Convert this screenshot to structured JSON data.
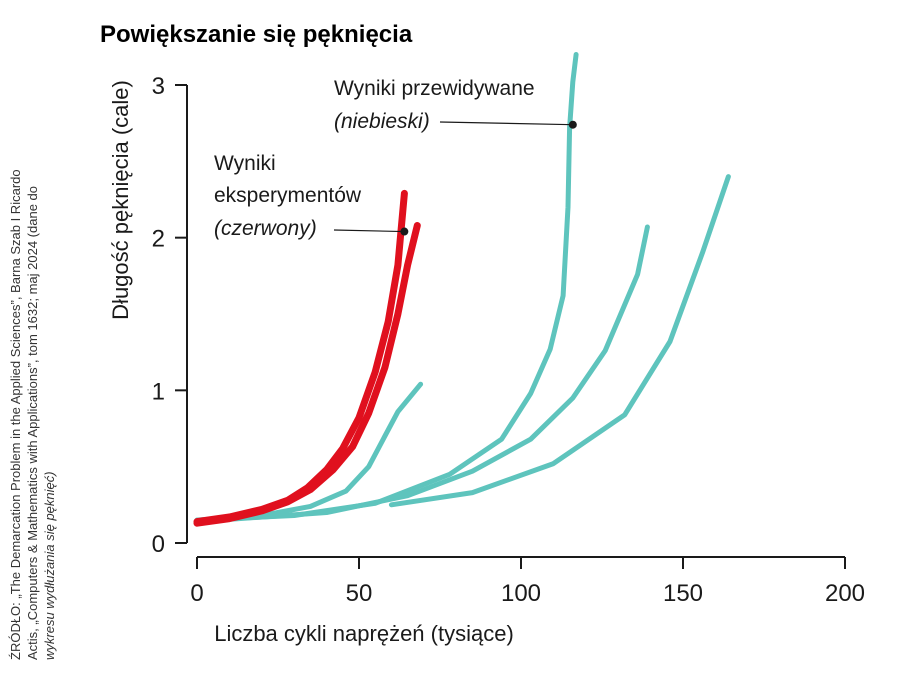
{
  "chart_data": {
    "type": "line",
    "title": "Powiększanie się pęknięcia",
    "xlabel": "Liczba cykli naprężeń (tysiące)",
    "ylabel": "Długość pęknięcia (cale)",
    "xlim": [
      0,
      200
    ],
    "ylim": [
      0,
      3
    ],
    "x_ticks": [
      "0",
      "50",
      "100",
      "150",
      "200"
    ],
    "y_ticks": [
      "0",
      "1",
      "2",
      "3"
    ],
    "grid": false,
    "colors": {
      "experimental": "#e0101e",
      "predicted": "#5ec4bd"
    },
    "series": [
      {
        "group": "experimental",
        "points": [
          [
            0,
            0.14
          ],
          [
            10,
            0.17
          ],
          [
            20,
            0.22
          ],
          [
            28,
            0.28
          ],
          [
            34,
            0.36
          ],
          [
            40,
            0.48
          ],
          [
            45,
            0.62
          ],
          [
            50,
            0.82
          ],
          [
            55,
            1.12
          ],
          [
            59,
            1.45
          ],
          [
            62,
            1.82
          ],
          [
            64,
            2.29
          ]
        ]
      },
      {
        "group": "experimental",
        "points": [
          [
            0,
            0.13
          ],
          [
            10,
            0.16
          ],
          [
            20,
            0.21
          ],
          [
            28,
            0.27
          ],
          [
            35,
            0.35
          ],
          [
            42,
            0.48
          ],
          [
            48,
            0.63
          ],
          [
            53,
            0.85
          ],
          [
            58,
            1.15
          ],
          [
            62,
            1.5
          ],
          [
            65,
            1.82
          ],
          [
            68,
            2.08
          ]
        ]
      },
      {
        "group": "predicted",
        "points": [
          [
            0,
            0.15
          ],
          [
            20,
            0.18
          ],
          [
            35,
            0.24
          ],
          [
            46,
            0.34
          ],
          [
            53,
            0.5
          ],
          [
            58,
            0.7
          ],
          [
            62,
            0.86
          ],
          [
            69,
            1.04
          ]
        ]
      },
      {
        "group": "predicted",
        "points": [
          [
            0,
            0.15
          ],
          [
            30,
            0.18
          ],
          [
            55,
            0.26
          ],
          [
            78,
            0.45
          ],
          [
            94,
            0.68
          ],
          [
            103,
            0.98
          ],
          [
            109,
            1.27
          ],
          [
            113,
            1.62
          ],
          [
            114.5,
            2.2
          ],
          [
            115,
            2.72
          ],
          [
            116,
            3.02
          ],
          [
            117,
            3.2
          ]
        ]
      },
      {
        "group": "predicted",
        "points": [
          [
            0,
            0.14
          ],
          [
            40,
            0.2
          ],
          [
            65,
            0.31
          ],
          [
            85,
            0.47
          ],
          [
            103,
            0.68
          ],
          [
            116,
            0.95
          ],
          [
            126,
            1.26
          ],
          [
            136,
            1.76
          ],
          [
            139,
            2.07
          ]
        ]
      },
      {
        "group": "predicted",
        "points": [
          [
            60,
            0.25
          ],
          [
            85,
            0.33
          ],
          [
            110,
            0.52
          ],
          [
            132,
            0.84
          ],
          [
            146,
            1.32
          ],
          [
            156,
            1.9
          ],
          [
            164,
            2.4
          ]
        ]
      }
    ],
    "annotations": {
      "experimental_label": [
        "Wyniki",
        "eksperymentów",
        "(czerwony)"
      ],
      "predicted_label": [
        "Wyniki przewidywane",
        "(niebieski)"
      ],
      "experimental_point": [
        64,
        2.04
      ],
      "predicted_point": [
        116,
        2.74
      ]
    },
    "source": [
      "ŹRÓDŁO: „The Demarcation Problem in the Applied Sciences”, Barna Szab I Ricardo",
      "Actis, „Computers & Mathematics with Applications”, tom 1632; maj 2024 (dane do",
      "wykresu wydłużania się pęknięć)"
    ]
  }
}
